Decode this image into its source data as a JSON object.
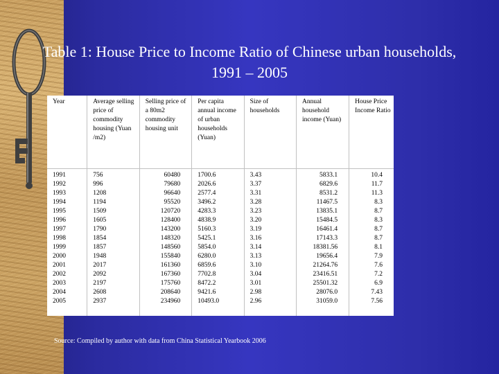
{
  "slide": {
    "title": "Table 1:  House Price to Income Ratio of Chinese urban households, 1991 – 2005",
    "source": "Source: Compiled by author with data from China Statistical Yearbook 2006",
    "colors": {
      "background": "#2e2ea6",
      "table_bg": "#ffffff",
      "text": "#ffffff"
    },
    "decoration": "key-icon"
  },
  "table": {
    "headers": [
      "Year",
      "Average selling price of commodity housing (Yuan /m2)",
      "Selling price of a 80m2 commodity housing unit",
      "Per capita annual income of urban households (Yuan)",
      "Size of households",
      "Annual household income (Yuan)",
      "House Price Income Ratio"
    ],
    "columns": {
      "year": [
        "1991",
        "1992",
        "1993",
        "1994",
        "1995",
        "1996",
        "1997",
        "1998",
        "1999",
        "2000",
        "2001",
        "2002",
        "2003",
        "2004",
        "2005"
      ],
      "avg_price": [
        "756",
        "996",
        "1208",
        "1194",
        "1509",
        "1605",
        "1790",
        "1854",
        "1857",
        "1948",
        "2017",
        "2092",
        "2197",
        "2608",
        "2937"
      ],
      "unit_price": [
        "60480",
        "79680",
        "96640",
        "95520",
        "120720",
        "128400",
        "143200",
        "148320",
        "148560",
        "155840",
        "161360",
        "167360",
        "175760",
        "208640",
        "234960"
      ],
      "per_capita_income": [
        "1700.6",
        "2026.6",
        "2577.4",
        "3496.2",
        "4283.3",
        "4838.9",
        "5160.3",
        "5425.1",
        "5854.0",
        "6280.0",
        "6859.6",
        "7702.8",
        "8472.2",
        "9421.6",
        "10493.0"
      ],
      "household_size": [
        "3.43",
        "3.37",
        "3.31",
        "3.28",
        "3.23",
        "3.20",
        "3.19",
        "3.16",
        "3.14",
        "3.13",
        "3.10",
        "3.04",
        "3.01",
        "2.98",
        "2.96"
      ],
      "household_income": [
        "5833.1",
        "6829.6",
        "8531.2",
        "11467.5",
        "13835.1",
        "15484.5",
        "16461.4",
        "17143.3",
        "18381.56",
        "19656.4",
        "21264.76",
        "23416.51",
        "25501.32",
        "28076.0",
        "31059.0"
      ],
      "ratio": [
        "10.4",
        "11.7",
        "11.3",
        "8.3",
        "8.7",
        "8.3",
        "8.7",
        "8.7",
        "8.1",
        "7.9",
        "7.6",
        "7.2",
        "6.9",
        "7.43",
        "7.56"
      ]
    }
  }
}
